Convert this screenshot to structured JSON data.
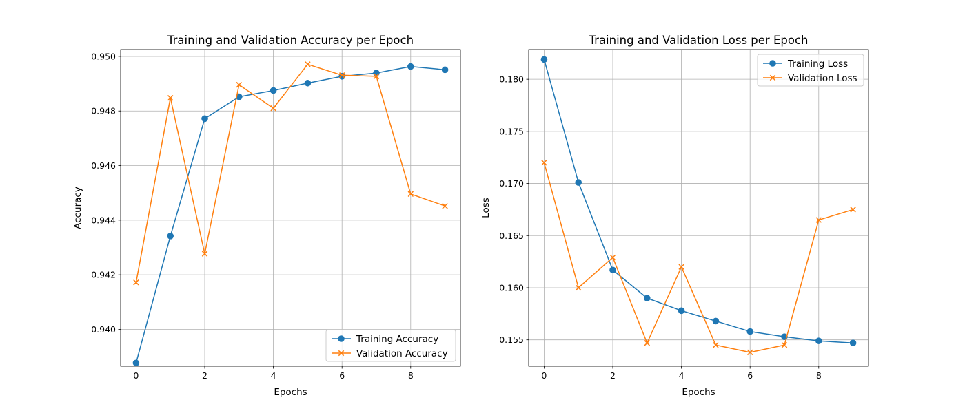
{
  "chart_data": [
    {
      "type": "line",
      "title": "Training and Validation Accuracy per Epoch",
      "xlabel": "Epochs",
      "ylabel": "Accuracy",
      "x": [
        0,
        1,
        2,
        3,
        4,
        5,
        6,
        7,
        8,
        9
      ],
      "xlim": [
        -0.45,
        9.45
      ],
      "ylim": [
        0.93865,
        0.95025
      ],
      "xticks": [
        0,
        2,
        4,
        6,
        8
      ],
      "yticks": [
        0.94,
        0.942,
        0.944,
        0.946,
        0.948,
        0.95
      ],
      "xtick_labels": [
        "0",
        "2",
        "4",
        "6",
        "8"
      ],
      "ytick_labels": [
        "0.940",
        "0.942",
        "0.944",
        "0.946",
        "0.948",
        "0.950"
      ],
      "grid": true,
      "legend_position": "lower right",
      "series": [
        {
          "name": "Training Accuracy",
          "color": "#1f77b4",
          "marker": "circle",
          "values": [
            0.93877,
            0.94342,
            0.94772,
            0.94852,
            0.94875,
            0.94902,
            0.94927,
            0.94939,
            0.94963,
            0.94951
          ]
        },
        {
          "name": "Validation Accuracy",
          "color": "#ff7f0e",
          "marker": "x",
          "values": [
            0.94172,
            0.94848,
            0.94277,
            0.94896,
            0.9481,
            0.94971,
            0.94931,
            0.94927,
            0.94496,
            0.94452
          ]
        }
      ]
    },
    {
      "type": "line",
      "title": "Training and Validation Loss per Epoch",
      "xlabel": "Epochs",
      "ylabel": "Loss",
      "x": [
        0,
        1,
        2,
        3,
        4,
        5,
        6,
        7,
        8,
        9
      ],
      "xlim": [
        -0.45,
        9.45
      ],
      "ylim": [
        0.15247,
        0.18285
      ],
      "xticks": [
        0,
        2,
        4,
        6,
        8
      ],
      "yticks": [
        0.155,
        0.16,
        0.165,
        0.17,
        0.175,
        0.18
      ],
      "xtick_labels": [
        "0",
        "2",
        "4",
        "6",
        "8"
      ],
      "ytick_labels": [
        "0.155",
        "0.160",
        "0.165",
        "0.170",
        "0.175",
        "0.180"
      ],
      "grid": true,
      "legend_position": "upper right",
      "series": [
        {
          "name": "Training Loss",
          "color": "#1f77b4",
          "marker": "circle",
          "values": [
            0.1819,
            0.1701,
            0.1617,
            0.159,
            0.1578,
            0.1568,
            0.1558,
            0.1553,
            0.1549,
            0.1547
          ]
        },
        {
          "name": "Validation Loss",
          "color": "#ff7f0e",
          "marker": "x",
          "values": [
            0.172,
            0.16,
            0.1629,
            0.1547,
            0.162,
            0.1545,
            0.1538,
            0.1545,
            0.1665,
            0.1675
          ]
        }
      ]
    }
  ]
}
